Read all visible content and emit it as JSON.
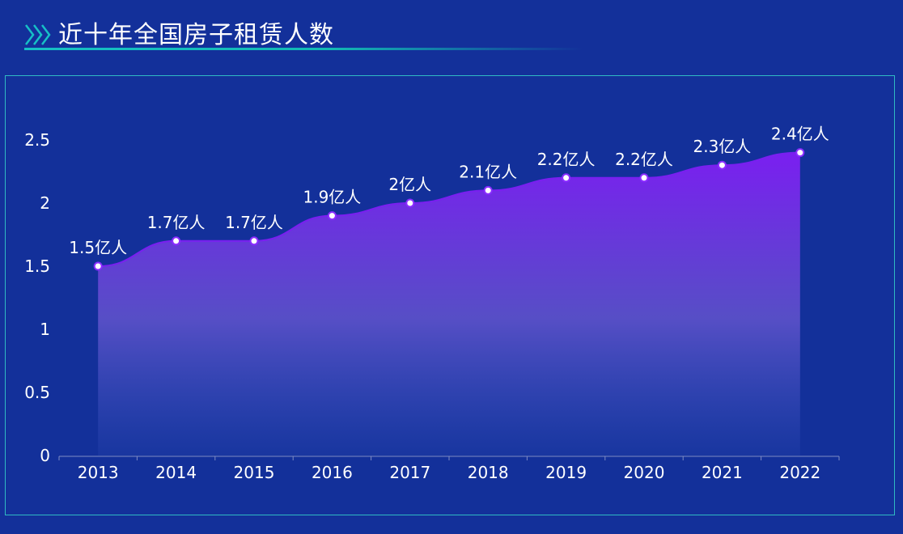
{
  "header": {
    "title": "近十年全国房子租赁人数"
  },
  "colors": {
    "background": "#13309a",
    "accent_teal": "#16c0c6",
    "area_top": "#7a1ff0",
    "area_bottom": "#3a55c0",
    "point_stroke": "#8a2cff"
  },
  "chart_data": {
    "type": "area",
    "categories": [
      "2013",
      "2014",
      "2015",
      "2016",
      "2017",
      "2018",
      "2019",
      "2020",
      "2021",
      "2022"
    ],
    "values": [
      1.5,
      1.7,
      1.7,
      1.9,
      2.0,
      2.1,
      2.2,
      2.2,
      2.3,
      2.4
    ],
    "data_labels": [
      "1.5亿人",
      "1.7亿人",
      "1.7亿人",
      "1.9亿人",
      "2亿人",
      "2.1亿人",
      "2.2亿人",
      "2.2亿人",
      "2.3亿人",
      "2.4亿人"
    ],
    "yticks": [
      "0",
      "0.5",
      "1",
      "1.5",
      "2",
      "2.5"
    ],
    "ytick_values": [
      0,
      0.5,
      1,
      1.5,
      2,
      2.5
    ],
    "ylim": [
      0,
      2.5
    ],
    "smooth": true,
    "grid": false,
    "legend": "none"
  }
}
